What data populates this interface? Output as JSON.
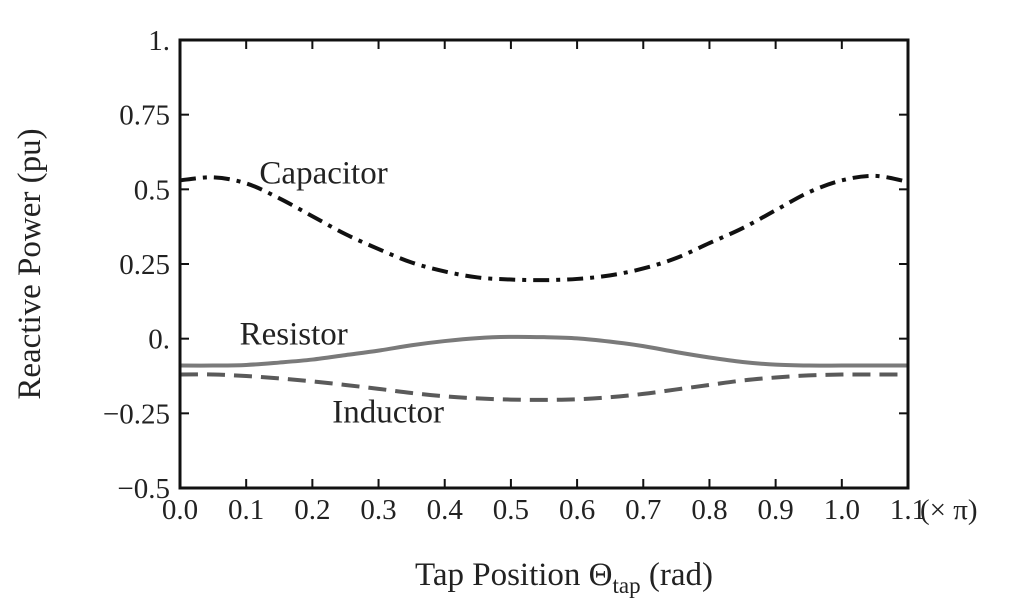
{
  "chart_data": {
    "type": "line",
    "title": "",
    "xlabel": {
      "main": "Tap Position Θ",
      "sub": "tap",
      "unit": " (rad)"
    },
    "ylabel": "Reactive Power (pu)",
    "x_unit_suffix": "(× π)",
    "xlim": [
      0.0,
      1.1
    ],
    "ylim": [
      -0.5,
      1.0
    ],
    "xticks": [
      0.0,
      0.1,
      0.2,
      0.3,
      0.4,
      0.5,
      0.6,
      0.7,
      0.8,
      0.9,
      1.0,
      1.1
    ],
    "xtick_labels": [
      "0.0",
      "0.1",
      "0.2",
      "0.3",
      "0.4",
      "0.5",
      "0.6",
      "0.7",
      "0.8",
      "0.9",
      "1.0",
      "1.1"
    ],
    "yticks": [
      -0.5,
      -0.25,
      0.0,
      0.25,
      0.5,
      0.75,
      1.0
    ],
    "ytick_labels": [
      "−0.5",
      "−0.25",
      "0.",
      "0.25",
      "0.5",
      "0.75",
      "1."
    ],
    "grid": false,
    "legend": "none",
    "x": [
      0.0,
      0.05,
      0.1,
      0.15,
      0.2,
      0.25,
      0.3,
      0.35,
      0.4,
      0.45,
      0.5,
      0.55,
      0.6,
      0.65,
      0.7,
      0.75,
      0.8,
      0.85,
      0.9,
      0.95,
      1.0,
      1.05,
      1.1
    ],
    "series": [
      {
        "name": "Capacitor",
        "style": "dashdot",
        "color": "#111111",
        "values": [
          0.53,
          0.54,
          0.52,
          0.47,
          0.41,
          0.35,
          0.3,
          0.255,
          0.225,
          0.205,
          0.198,
          0.196,
          0.2,
          0.212,
          0.235,
          0.27,
          0.32,
          0.37,
          0.43,
          0.49,
          0.53,
          0.545,
          0.525
        ]
      },
      {
        "name": "Resistor",
        "style": "solid",
        "color": "#7a7a7a",
        "values": [
          -0.09,
          -0.09,
          -0.088,
          -0.08,
          -0.07,
          -0.055,
          -0.04,
          -0.022,
          -0.008,
          0.002,
          0.006,
          0.005,
          0.001,
          -0.01,
          -0.025,
          -0.045,
          -0.063,
          -0.078,
          -0.087,
          -0.09,
          -0.09,
          -0.09,
          -0.09
        ]
      },
      {
        "name": "Inductor",
        "style": "dashed",
        "color": "#5a5a5a",
        "values": [
          -0.12,
          -0.12,
          -0.125,
          -0.133,
          -0.143,
          -0.155,
          -0.168,
          -0.182,
          -0.193,
          -0.2,
          -0.204,
          -0.205,
          -0.203,
          -0.196,
          -0.185,
          -0.17,
          -0.155,
          -0.14,
          -0.13,
          -0.123,
          -0.12,
          -0.12,
          -0.12
        ]
      }
    ],
    "annotations": [
      {
        "text": "Capacitor",
        "x": 0.12,
        "y": 0.52
      },
      {
        "text": "Resistor",
        "x": 0.09,
        "y": -0.02
      },
      {
        "text": "Inductor",
        "x": 0.23,
        "y": -0.28
      }
    ]
  }
}
